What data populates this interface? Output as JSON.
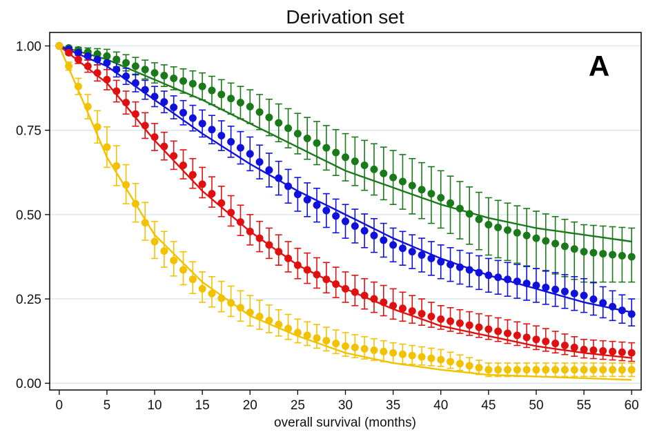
{
  "chart_data": {
    "type": "line",
    "title": "Derivation set",
    "panel_label": "A",
    "xlabel": "overall survival (months)",
    "ylabel": "",
    "xlim": [
      -1,
      61
    ],
    "ylim": [
      -0.02,
      1.04
    ],
    "x_ticks": [
      0,
      5,
      10,
      15,
      20,
      25,
      30,
      35,
      40,
      45,
      50,
      55,
      60
    ],
    "y_ticks": [
      0.0,
      0.25,
      0.5,
      0.75,
      1.0
    ],
    "y_tick_labels": [
      "0.00",
      "0.25",
      "0.50",
      "0.75",
      "1.00"
    ],
    "grid": true,
    "legend": "none",
    "series": [
      {
        "color": "#1a7a1a",
        "kind": "observed_with_ci_and_fitted_curve",
        "x": [
          0,
          5,
          10,
          15,
          20,
          25,
          30,
          35,
          40,
          45,
          50,
          55,
          60
        ],
        "observed": [
          1.0,
          0.97,
          0.92,
          0.88,
          0.82,
          0.74,
          0.67,
          0.61,
          0.55,
          0.47,
          0.43,
          0.39,
          0.375
        ],
        "ci_lower": [
          1.0,
          0.95,
          0.89,
          0.84,
          0.77,
          0.68,
          0.6,
          0.53,
          0.46,
          0.38,
          0.34,
          0.3,
          0.3
        ],
        "ci_upper": [
          1.0,
          0.99,
          0.95,
          0.92,
          0.87,
          0.8,
          0.74,
          0.69,
          0.63,
          0.55,
          0.51,
          0.47,
          0.46
        ],
        "fitted": [
          1.0,
          0.96,
          0.9,
          0.84,
          0.77,
          0.7,
          0.63,
          0.58,
          0.53,
          0.49,
          0.46,
          0.44,
          0.42
        ]
      },
      {
        "color": "#1010dd",
        "kind": "observed_with_ci_and_fitted_curve",
        "x": [
          0,
          5,
          10,
          15,
          20,
          25,
          30,
          35,
          40,
          45,
          50,
          55,
          60
        ],
        "observed": [
          1.0,
          0.95,
          0.85,
          0.77,
          0.68,
          0.56,
          0.48,
          0.41,
          0.36,
          0.32,
          0.29,
          0.26,
          0.205
        ],
        "ci_lower": [
          1.0,
          0.93,
          0.82,
          0.73,
          0.63,
          0.51,
          0.43,
          0.36,
          0.31,
          0.27,
          0.24,
          0.21,
          0.17
        ],
        "ci_upper": [
          1.0,
          0.97,
          0.88,
          0.81,
          0.73,
          0.61,
          0.53,
          0.46,
          0.41,
          0.37,
          0.34,
          0.31,
          0.25
        ],
        "fitted": [
          1.0,
          0.94,
          0.84,
          0.74,
          0.65,
          0.57,
          0.5,
          0.43,
          0.37,
          0.32,
          0.28,
          0.24,
          0.21
        ]
      },
      {
        "color": "#e01010",
        "kind": "observed_with_ci_and_fitted_curve",
        "x": [
          0,
          5,
          10,
          15,
          20,
          25,
          30,
          35,
          40,
          45,
          50,
          55,
          60
        ],
        "observed": [
          1.0,
          0.9,
          0.73,
          0.59,
          0.45,
          0.35,
          0.28,
          0.23,
          0.19,
          0.16,
          0.13,
          0.1,
          0.09
        ],
        "ci_lower": [
          1.0,
          0.87,
          0.69,
          0.55,
          0.41,
          0.31,
          0.24,
          0.19,
          0.16,
          0.13,
          0.1,
          0.075,
          0.065
        ],
        "ci_upper": [
          1.0,
          0.93,
          0.77,
          0.64,
          0.5,
          0.4,
          0.33,
          0.28,
          0.23,
          0.2,
          0.17,
          0.13,
          0.12
        ],
        "fitted": [
          1.0,
          0.89,
          0.72,
          0.57,
          0.45,
          0.35,
          0.28,
          0.22,
          0.17,
          0.14,
          0.11,
          0.09,
          0.075
        ]
      },
      {
        "color": "#f2c200",
        "kind": "observed_with_ci_and_fitted_curve",
        "x": [
          0,
          5,
          10,
          15,
          20,
          25,
          30,
          35,
          40,
          45,
          50,
          55,
          60
        ],
        "observed": [
          1.0,
          0.7,
          0.42,
          0.28,
          0.21,
          0.15,
          0.11,
          0.09,
          0.07,
          0.04,
          0.04,
          0.04,
          0.04
        ],
        "ci_lower": [
          1.0,
          0.64,
          0.37,
          0.24,
          0.17,
          0.12,
          0.08,
          0.06,
          0.05,
          0.02,
          0.02,
          0.02,
          0.02
        ],
        "ci_upper": [
          1.0,
          0.76,
          0.48,
          0.33,
          0.26,
          0.19,
          0.15,
          0.12,
          0.1,
          0.06,
          0.06,
          0.06,
          0.06
        ],
        "fitted": [
          1.0,
          0.67,
          0.44,
          0.3,
          0.2,
          0.14,
          0.09,
          0.06,
          0.04,
          0.025,
          0.02,
          0.015,
          0.01
        ]
      }
    ]
  }
}
